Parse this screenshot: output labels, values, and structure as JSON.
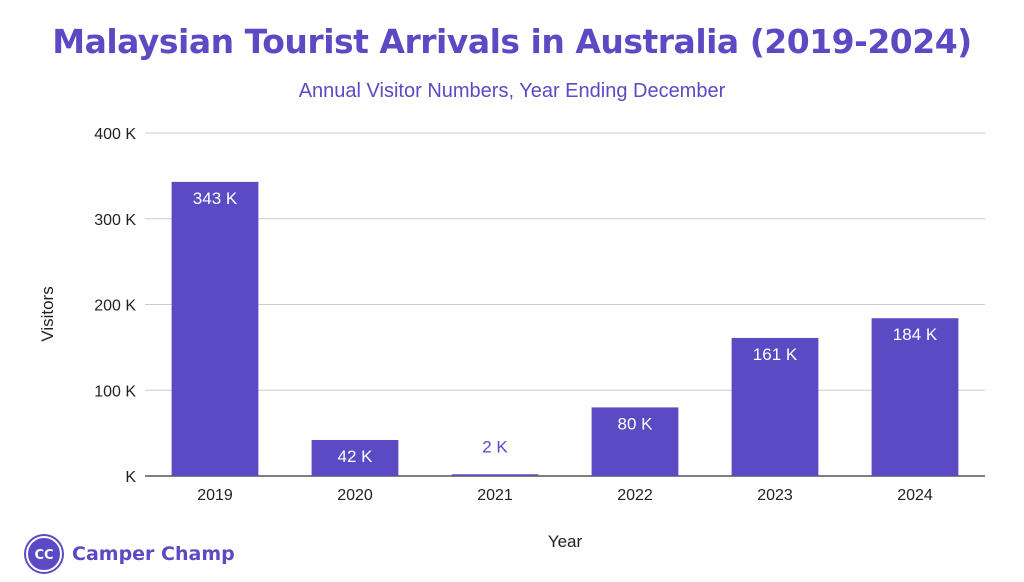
{
  "chart_data": {
    "type": "bar",
    "title": "Malaysian Tourist Arrivals in Australia (2019-2024)",
    "subtitle": "Annual Visitor Numbers, Year Ending December",
    "xlabel": "Year",
    "ylabel": "Visitors",
    "categories": [
      "2019",
      "2020",
      "2021",
      "2022",
      "2023",
      "2024"
    ],
    "values": [
      343,
      42,
      2,
      80,
      161,
      184
    ],
    "data_labels": [
      "343 K",
      "42 K",
      "2 K",
      "80 K",
      "161 K",
      "184 K"
    ],
    "ylim": [
      0,
      400
    ],
    "yticks": [
      0,
      100,
      200,
      300,
      400
    ],
    "ytick_labels": [
      "K",
      "100 K",
      "200 K",
      "300 K",
      "400 K"
    ],
    "grid": true,
    "legend": "none",
    "bar_color": "#5b4ac4",
    "label_color_inside": "#ffffff",
    "label_color_outside": "#5b4ac4"
  },
  "logo": {
    "initials": "CC",
    "text": "Camper Champ"
  }
}
